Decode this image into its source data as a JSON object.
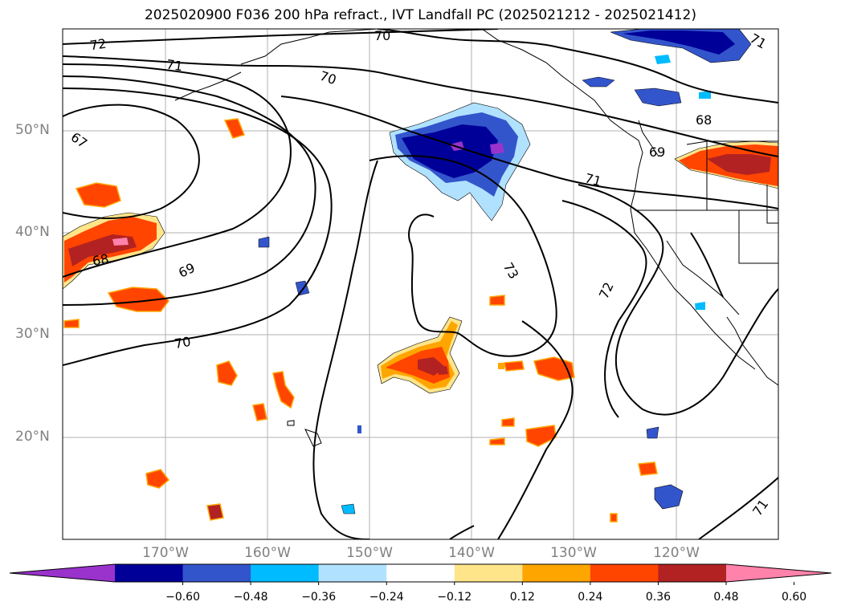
{
  "title": "2025020900 F036 200 hPa refract., IVT Landfall PC (2025021212 - 2025021412)",
  "lat_labels": [
    "50°N",
    "40°N",
    "30°N",
    "20°N"
  ],
  "lon_labels": [
    "170°W",
    "160°W",
    "150°W",
    "140°W",
    "130°W",
    "120°W"
  ],
  "contour_labels": [
    "72",
    "70",
    "71",
    "70",
    "67",
    "68",
    "69",
    "70",
    "71",
    "73",
    "72",
    "69",
    "68",
    "71",
    "71"
  ],
  "colorbar": {
    "ticks": [
      "−0.60",
      "−0.48",
      "−0.36",
      "−0.24",
      "−0.12",
      "0.12",
      "0.24",
      "0.36",
      "0.48",
      "0.60"
    ],
    "colors": [
      "#9933cc",
      "#000099",
      "#3355cc",
      "#00bbff",
      "#b0e2ff",
      "#ffffff",
      "#ffe58a",
      "#ffa500",
      "#ff4500",
      "#b22222",
      "#ff82ab"
    ]
  }
}
